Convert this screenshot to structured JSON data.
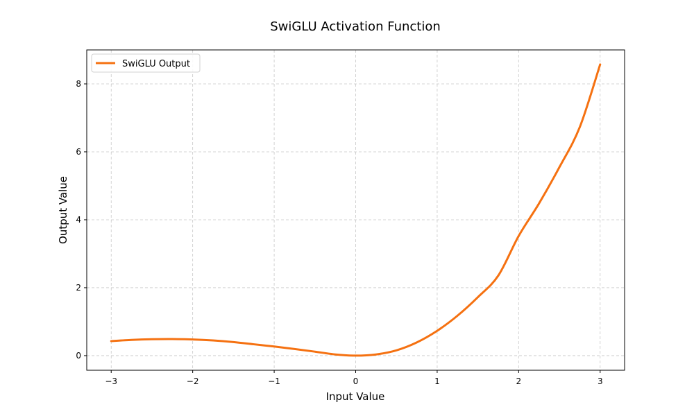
{
  "chart_data": {
    "type": "line",
    "title": "SwiGLU Activation Function",
    "xlabel": "Input Value",
    "ylabel": "Output Value",
    "xlim": [
      -3.3,
      3.3
    ],
    "ylim": [
      -0.43,
      9.0
    ],
    "xticks": [
      -3,
      -2,
      -1,
      0,
      1,
      2,
      3
    ],
    "xtick_labels": [
      "−3",
      "−2",
      "−1",
      "0",
      "1",
      "2",
      "3"
    ],
    "yticks": [
      0,
      2,
      4,
      6,
      8
    ],
    "ytick_labels": [
      "0",
      "2",
      "4",
      "6",
      "8"
    ],
    "grid": true,
    "legend_position": "top-left",
    "series": [
      {
        "name": "SwiGLU Output",
        "color": "#f57111",
        "x": [
          -3.0,
          -2.75,
          -2.5,
          -2.25,
          -2.0,
          -1.75,
          -1.5,
          -1.25,
          -1.0,
          -0.75,
          -0.5,
          -0.25,
          0.0,
          0.25,
          0.5,
          0.75,
          1.0,
          1.25,
          1.5,
          1.75,
          2.0,
          2.25,
          2.5,
          2.75,
          3.0
        ],
        "y": [
          0.428,
          0.463,
          0.483,
          0.488,
          0.477,
          0.448,
          0.4,
          0.334,
          0.269,
          0.196,
          0.117,
          0.035,
          0.0,
          0.035,
          0.156,
          0.389,
          0.731,
          1.177,
          1.722,
          2.356,
          3.523,
          4.48,
          5.548,
          6.727,
          8.573
        ]
      }
    ]
  }
}
